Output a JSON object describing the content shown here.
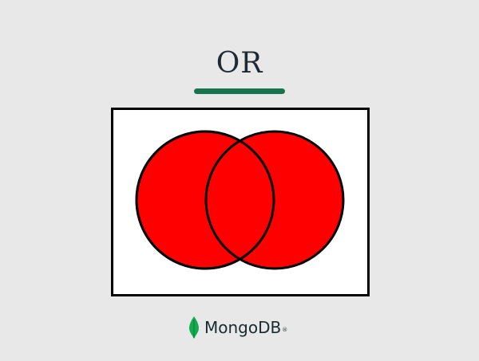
{
  "slide": {
    "title": "OR",
    "underline_color": "#17744f"
  },
  "venn": {
    "sets": [
      {
        "id": "A",
        "label": ""
      },
      {
        "id": "B",
        "label": ""
      }
    ],
    "operation": "union",
    "fill_color": "#ff0000",
    "stroke_color": "#000000"
  },
  "brand": {
    "logo_icon": "mongodb-leaf-icon",
    "logo_text": "MongoDB",
    "logo_mark": "®",
    "leaf_color": "#13aa52"
  }
}
